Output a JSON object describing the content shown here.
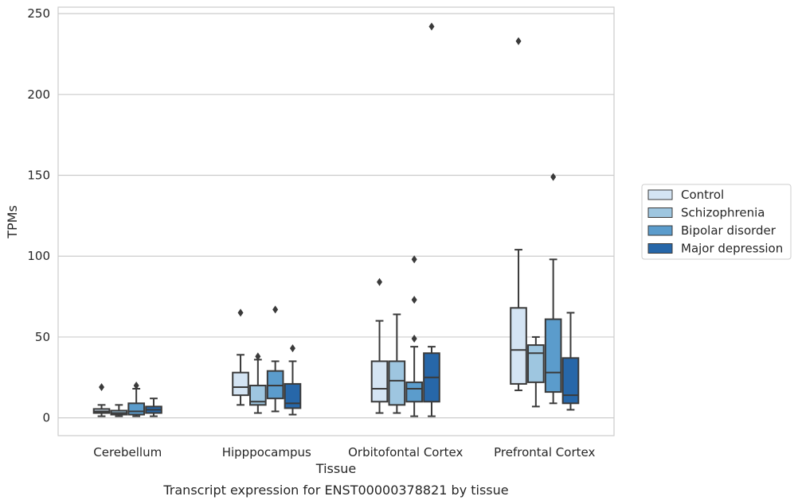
{
  "caption": "Transcript expression for ENST00000378821 by tissue",
  "chart_data": {
    "type": "box",
    "xlabel": "Tissue",
    "ylabel": "TPMs",
    "ylim": [
      -11,
      254
    ],
    "yticks": [
      0,
      50,
      100,
      150,
      200,
      250
    ],
    "grid": "horizontal",
    "legend_position": "right",
    "categories": [
      "Cerebellum",
      "Hipppocampus",
      "Orbitofontal Cortex",
      "Prefrontal Cortex"
    ],
    "series": [
      {
        "name": "Control",
        "color": "#d4e4f3",
        "boxes": [
          {
            "whisker_low": 1,
            "q1": 3,
            "median": 4,
            "q3": 5.5,
            "whisker_high": 8,
            "outliers": [
              19
            ]
          },
          {
            "whisker_low": 8,
            "q1": 14,
            "median": 19,
            "q3": 28,
            "whisker_high": 39,
            "outliers": [
              65
            ]
          },
          {
            "whisker_low": 3,
            "q1": 10,
            "median": 18,
            "q3": 35,
            "whisker_high": 60,
            "outliers": [
              84
            ]
          },
          {
            "whisker_low": 17,
            "q1": 21,
            "median": 42,
            "q3": 68,
            "whisker_high": 104,
            "outliers": [
              233
            ]
          }
        ]
      },
      {
        "name": "Schizophrenia",
        "color": "#9ec6e0",
        "boxes": [
          {
            "whisker_low": 1,
            "q1": 2,
            "median": 3,
            "q3": 4.5,
            "whisker_high": 8,
            "outliers": []
          },
          {
            "whisker_low": 3,
            "q1": 8,
            "median": 10,
            "q3": 20,
            "whisker_high": 36,
            "outliers": [
              38
            ]
          },
          {
            "whisker_low": 3,
            "q1": 8,
            "median": 23,
            "q3": 35,
            "whisker_high": 64,
            "outliers": []
          },
          {
            "whisker_low": 7,
            "q1": 22,
            "median": 40,
            "q3": 45,
            "whisker_high": 50,
            "outliers": []
          }
        ]
      },
      {
        "name": "Bipolar disorder",
        "color": "#5b9ccc",
        "boxes": [
          {
            "whisker_low": 1,
            "q1": 2,
            "median": 4,
            "q3": 9,
            "whisker_high": 18,
            "outliers": [
              20
            ]
          },
          {
            "whisker_low": 4,
            "q1": 12,
            "median": 20,
            "q3": 29,
            "whisker_high": 35,
            "outliers": [
              67
            ]
          },
          {
            "whisker_low": 1,
            "q1": 10,
            "median": 18,
            "q3": 22,
            "whisker_high": 44,
            "outliers": [
              49,
              73,
              98
            ]
          },
          {
            "whisker_low": 9,
            "q1": 16,
            "median": 28,
            "q3": 61,
            "whisker_high": 98,
            "outliers": [
              149
            ]
          }
        ]
      },
      {
        "name": "Major depression",
        "color": "#2767a9",
        "boxes": [
          {
            "whisker_low": 1,
            "q1": 3,
            "median": 5,
            "q3": 7,
            "whisker_high": 12,
            "outliers": []
          },
          {
            "whisker_low": 2,
            "q1": 6,
            "median": 9,
            "q3": 21,
            "whisker_high": 35,
            "outliers": [
              43
            ]
          },
          {
            "whisker_low": 1,
            "q1": 10,
            "median": 25,
            "q3": 40,
            "whisker_high": 44,
            "outliers": [
              242
            ]
          },
          {
            "whisker_low": 5,
            "q1": 9,
            "median": 14,
            "q3": 37,
            "whisker_high": 65,
            "outliers": []
          }
        ]
      }
    ]
  }
}
